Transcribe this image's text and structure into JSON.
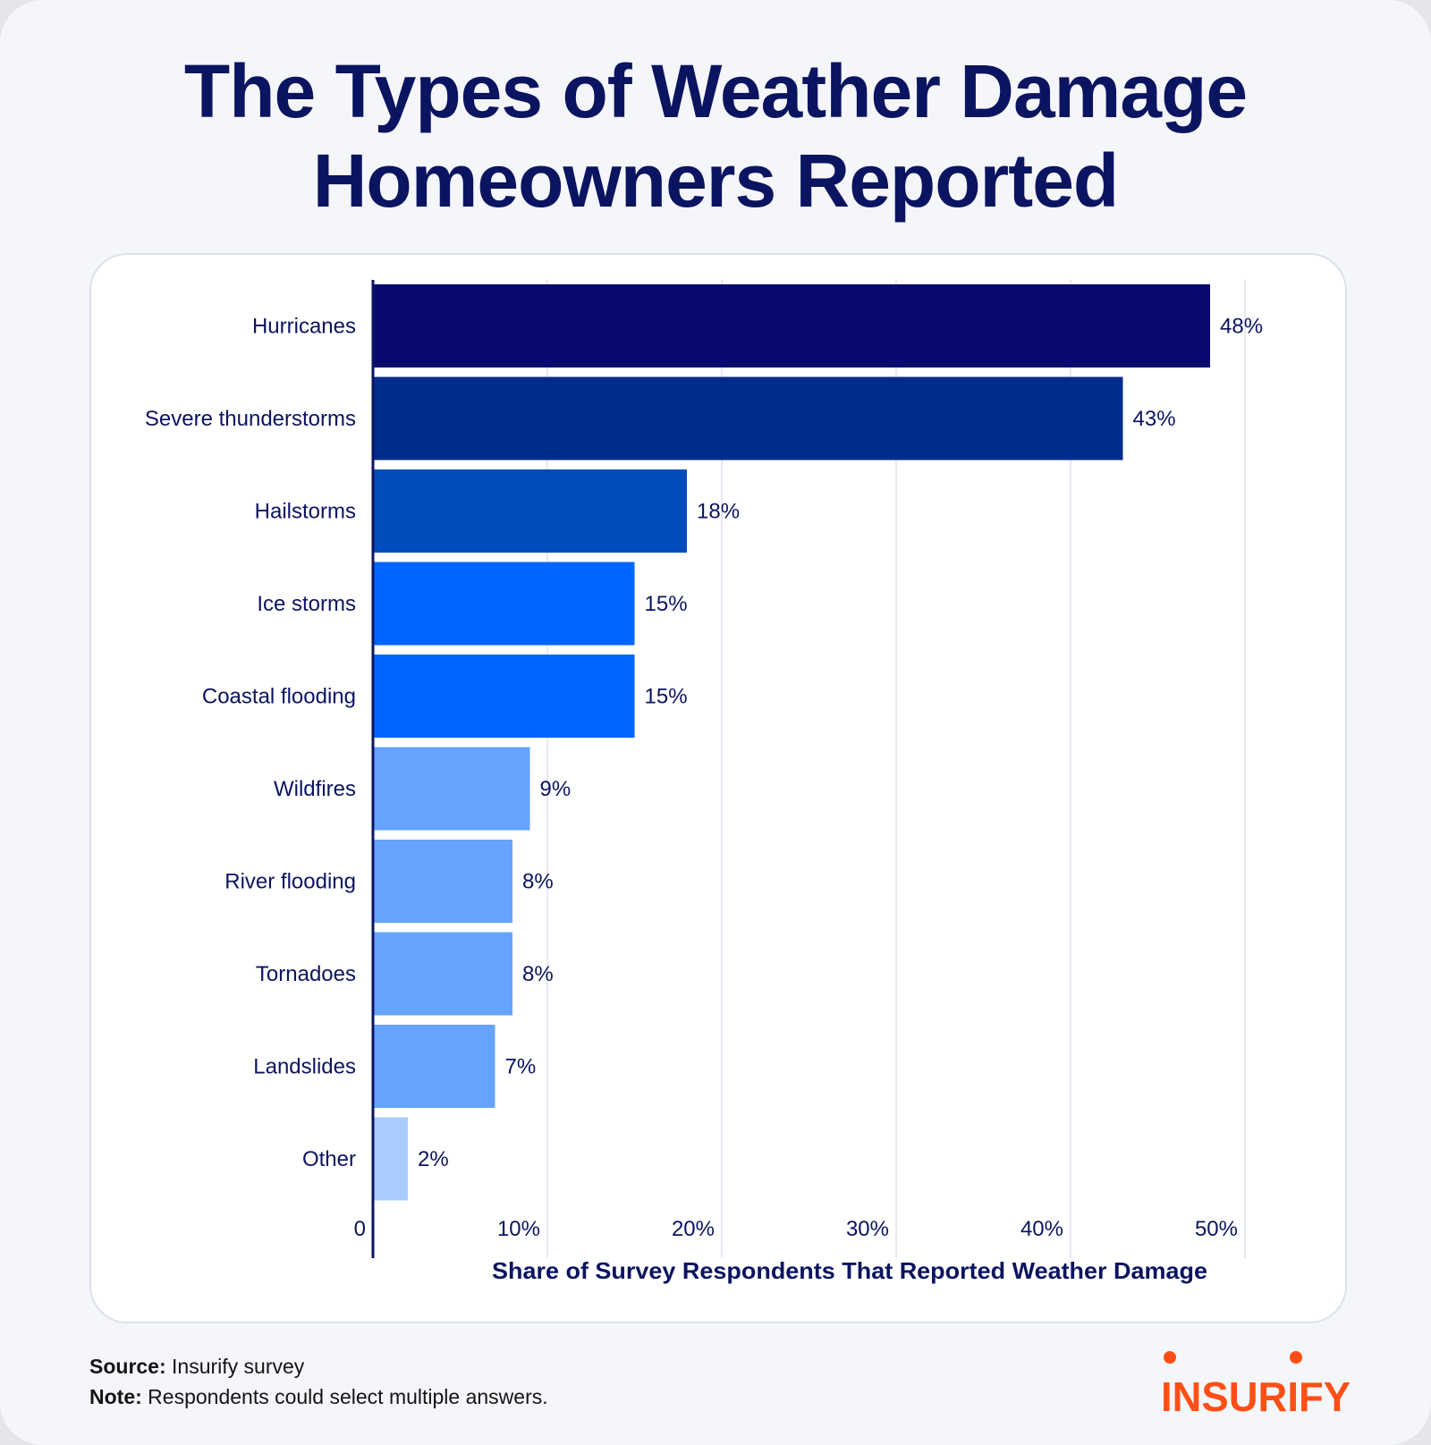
{
  "title_line1": "The Types of Weather Damage",
  "title_line2": "Homeowners Reported",
  "footer": {
    "source_label": "Source:",
    "source_text": "Insurify survey",
    "note_label": "Note:",
    "note_text": "Respondents could select multiple answers."
  },
  "logo": {
    "text": "INSURIFY",
    "color": "#ff4f17"
  },
  "colors": {
    "title": "#0b1460",
    "axis": "#0b1460",
    "grid": "#dfe3ef"
  },
  "chart_data": {
    "type": "bar",
    "orientation": "horizontal",
    "categories": [
      "Hurricanes",
      "Severe thunderstorms",
      "Hailstorms",
      "Ice storms",
      "Coastal flooding",
      "Wildfires",
      "River flooding",
      "Tornadoes",
      "Landslides",
      "Other"
    ],
    "values": [
      48,
      43,
      18,
      15,
      15,
      9,
      8,
      8,
      7,
      2
    ],
    "value_labels": [
      "48%",
      "43%",
      "18%",
      "15%",
      "15%",
      "9%",
      "8%",
      "8%",
      "7%",
      "2%"
    ],
    "bar_colors": [
      "#07096e",
      "#012c8c",
      "#014cbd",
      "#0066ff",
      "#0066ff",
      "#66a3ff",
      "#66a3ff",
      "#66a3ff",
      "#66a3ff",
      "#aaccff"
    ],
    "xlabel": "Share of Survey Respondents That Reported Weather Damage",
    "ylabel": "",
    "xlim": [
      0,
      50
    ],
    "xticks": [
      0,
      10,
      20,
      30,
      40,
      50
    ],
    "xtick_labels": [
      "0",
      "10%",
      "20%",
      "30%",
      "40%",
      "50%"
    ],
    "grid": true
  }
}
